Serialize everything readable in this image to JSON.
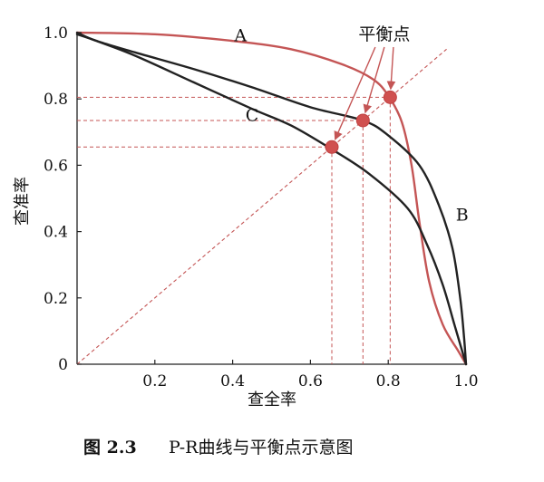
{
  "chart_data": {
    "type": "line",
    "xlabel": "查全率",
    "ylabel": "查准率",
    "xlim": [
      0,
      1
    ],
    "ylim": [
      0,
      1
    ],
    "x_ticks": [
      "0.2",
      "0.4",
      "0.6",
      "0.8",
      "1.0"
    ],
    "y_ticks": [
      "0",
      "0.2",
      "0.4",
      "0.6",
      "0.8",
      "1.0"
    ],
    "grid": false,
    "series": [
      {
        "name": "A",
        "color": "#c45555",
        "points": [
          [
            0,
            1.0
          ],
          [
            0.2,
            0.995
          ],
          [
            0.4,
            0.975
          ],
          [
            0.55,
            0.95
          ],
          [
            0.68,
            0.905
          ],
          [
            0.76,
            0.86
          ],
          [
            0.8,
            0.81
          ],
          [
            0.835,
            0.73
          ],
          [
            0.86,
            0.6
          ],
          [
            0.88,
            0.43
          ],
          [
            0.905,
            0.25
          ],
          [
            0.94,
            0.12
          ],
          [
            0.98,
            0.04
          ],
          [
            1.0,
            0.0
          ]
        ]
      },
      {
        "name": "B",
        "color": "#222222",
        "points": [
          [
            0,
            1.0
          ],
          [
            0.05,
            0.975
          ],
          [
            0.15,
            0.94
          ],
          [
            0.3,
            0.89
          ],
          [
            0.45,
            0.835
          ],
          [
            0.6,
            0.775
          ],
          [
            0.735,
            0.735
          ],
          [
            0.8,
            0.69
          ],
          [
            0.88,
            0.6
          ],
          [
            0.93,
            0.48
          ],
          [
            0.965,
            0.35
          ],
          [
            0.985,
            0.2
          ],
          [
            0.995,
            0.08
          ],
          [
            1.0,
            0.0
          ]
        ]
      },
      {
        "name": "C",
        "color": "#222222",
        "points": [
          [
            0,
            0.995
          ],
          [
            0.05,
            0.975
          ],
          [
            0.15,
            0.93
          ],
          [
            0.3,
            0.85
          ],
          [
            0.45,
            0.77
          ],
          [
            0.55,
            0.72
          ],
          [
            0.655,
            0.648
          ],
          [
            0.75,
            0.575
          ],
          [
            0.85,
            0.47
          ],
          [
            0.9,
            0.36
          ],
          [
            0.94,
            0.24
          ],
          [
            0.97,
            0.12
          ],
          [
            0.99,
            0.04
          ],
          [
            1.0,
            0.0
          ]
        ]
      }
    ],
    "reference_line": {
      "points": [
        [
          0,
          0
        ],
        [
          0.95,
          0.95
        ]
      ],
      "color": "#c45555"
    },
    "break_even_points": [
      {
        "x": 0.655,
        "y": 0.655
      },
      {
        "x": 0.735,
        "y": 0.735
      },
      {
        "x": 0.805,
        "y": 0.805
      }
    ],
    "annotation": {
      "text": "平衡点",
      "anchor": [
        0.79,
        1.0
      ]
    },
    "series_labels": [
      {
        "text": "A",
        "x": 0.42,
        "y": 0.99
      },
      {
        "text": "B",
        "x": 0.99,
        "y": 0.45
      },
      {
        "text": "C",
        "x": 0.45,
        "y": 0.75
      }
    ]
  },
  "caption": {
    "number": "图 2.3",
    "text": "P-R曲线与平衡点示意图"
  }
}
